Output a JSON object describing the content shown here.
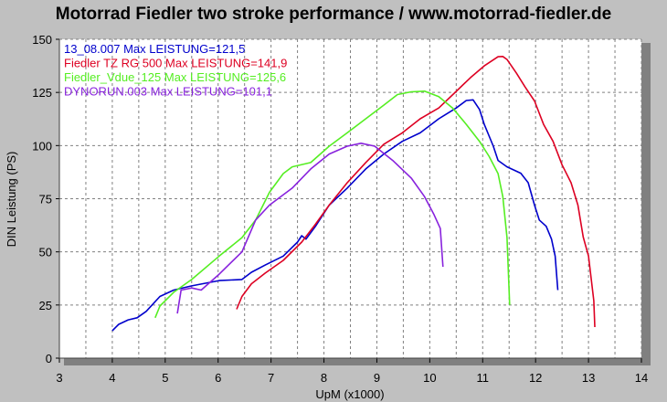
{
  "chart_data": {
    "type": "line",
    "title": "Motorrad Fiedler two stroke performance / www.motorrad-fiedler.de",
    "xlabel": "UpM (x1000)",
    "ylabel": "DIN Leistung (PS)",
    "xlim": [
      3,
      14
    ],
    "ylim": [
      0,
      150
    ],
    "xticks": [
      3,
      4,
      5,
      6,
      7,
      8,
      9,
      10,
      11,
      12,
      13,
      14
    ],
    "yticks": [
      0,
      25,
      50,
      75,
      100,
      125,
      150
    ],
    "grid": true,
    "legend_position": "top-left",
    "series": [
      {
        "name": "13_08.007  Max LEISTUNG=121,5",
        "color": "#0000cc",
        "points": [
          [
            4.0,
            12.9
          ],
          [
            4.12,
            15.9
          ],
          [
            4.3,
            18
          ],
          [
            4.47,
            19
          ],
          [
            4.64,
            22
          ],
          [
            4.9,
            29
          ],
          [
            5.16,
            32
          ],
          [
            5.5,
            34
          ],
          [
            6.02,
            36.5
          ],
          [
            6.45,
            37
          ],
          [
            6.63,
            40.4
          ],
          [
            6.89,
            43.8
          ],
          [
            7.23,
            48
          ],
          [
            7.5,
            54.6
          ],
          [
            7.58,
            57.6
          ],
          [
            7.66,
            56
          ],
          [
            7.84,
            62
          ],
          [
            8.1,
            72
          ],
          [
            8.44,
            80
          ],
          [
            8.79,
            89
          ],
          [
            9.13,
            96
          ],
          [
            9.48,
            102
          ],
          [
            9.82,
            106
          ],
          [
            10.17,
            112.6
          ],
          [
            10.5,
            117.7
          ],
          [
            10.69,
            121.2
          ],
          [
            10.82,
            121.5
          ],
          [
            10.94,
            117
          ],
          [
            11.03,
            110
          ],
          [
            11.2,
            99.7
          ],
          [
            11.29,
            93
          ],
          [
            11.46,
            90
          ],
          [
            11.72,
            87
          ],
          [
            11.86,
            82.5
          ],
          [
            11.98,
            72
          ],
          [
            12.07,
            65
          ],
          [
            12.2,
            62
          ],
          [
            12.3,
            56
          ],
          [
            12.37,
            48
          ],
          [
            12.42,
            32
          ]
        ]
      },
      {
        "name": "Fiedler TZ RG 500  Max LEISTUNG=141,9",
        "color": "#dd0022",
        "points": [
          [
            6.35,
            23
          ],
          [
            6.45,
            29
          ],
          [
            6.63,
            35
          ],
          [
            6.89,
            40
          ],
          [
            7.23,
            46
          ],
          [
            7.58,
            54.6
          ],
          [
            7.84,
            63
          ],
          [
            8.1,
            72
          ],
          [
            8.44,
            82.5
          ],
          [
            8.79,
            92
          ],
          [
            9.13,
            100.6
          ],
          [
            9.48,
            106
          ],
          [
            9.82,
            112.6
          ],
          [
            10.17,
            117.7
          ],
          [
            10.5,
            125.5
          ],
          [
            10.77,
            132
          ],
          [
            11.03,
            137.5
          ],
          [
            11.29,
            141.8
          ],
          [
            11.38,
            141.9
          ],
          [
            11.46,
            140.5
          ],
          [
            11.64,
            134
          ],
          [
            11.8,
            127.6
          ],
          [
            11.98,
            121
          ],
          [
            12.15,
            110
          ],
          [
            12.33,
            102
          ],
          [
            12.5,
            91
          ],
          [
            12.67,
            82.5
          ],
          [
            12.8,
            72
          ],
          [
            12.9,
            57
          ],
          [
            13.0,
            48
          ],
          [
            13.1,
            27
          ],
          [
            13.12,
            14.6
          ]
        ]
      },
      {
        "name": "Fiedler_Vdue_125  Max LEISTUNG=125,6",
        "color": "#55ee22",
        "points": [
          [
            4.81,
            19
          ],
          [
            4.9,
            24.5
          ],
          [
            5.16,
            31
          ],
          [
            5.5,
            37
          ],
          [
            6.02,
            48
          ],
          [
            6.45,
            56.7
          ],
          [
            6.71,
            65
          ],
          [
            6.97,
            78
          ],
          [
            7.23,
            86.8
          ],
          [
            7.4,
            90
          ],
          [
            7.75,
            92
          ],
          [
            8.1,
            99.7
          ],
          [
            8.44,
            106
          ],
          [
            8.79,
            112.6
          ],
          [
            9.13,
            119
          ],
          [
            9.39,
            124
          ],
          [
            9.65,
            125.3
          ],
          [
            9.9,
            125.6
          ],
          [
            10.17,
            123
          ],
          [
            10.43,
            117.7
          ],
          [
            10.69,
            110
          ],
          [
            10.94,
            102
          ],
          [
            11.12,
            95
          ],
          [
            11.29,
            86.8
          ],
          [
            11.38,
            76
          ],
          [
            11.46,
            56.7
          ],
          [
            11.51,
            25
          ]
        ]
      },
      {
        "name": "DYNORUN.003  Max LEISTUNG=101,1",
        "color": "#8822dd",
        "points": [
          [
            5.23,
            21
          ],
          [
            5.3,
            32
          ],
          [
            5.5,
            33
          ],
          [
            5.68,
            32
          ],
          [
            6.02,
            39.5
          ],
          [
            6.45,
            50
          ],
          [
            6.71,
            65
          ],
          [
            6.97,
            72
          ],
          [
            7.4,
            80
          ],
          [
            7.75,
            89
          ],
          [
            8.1,
            96
          ],
          [
            8.44,
            99.7
          ],
          [
            8.7,
            101.1
          ],
          [
            8.96,
            99.7
          ],
          [
            9.3,
            93
          ],
          [
            9.65,
            84.7
          ],
          [
            9.9,
            76
          ],
          [
            10.08,
            67.5
          ],
          [
            10.2,
            61
          ],
          [
            10.25,
            43
          ]
        ]
      }
    ]
  }
}
